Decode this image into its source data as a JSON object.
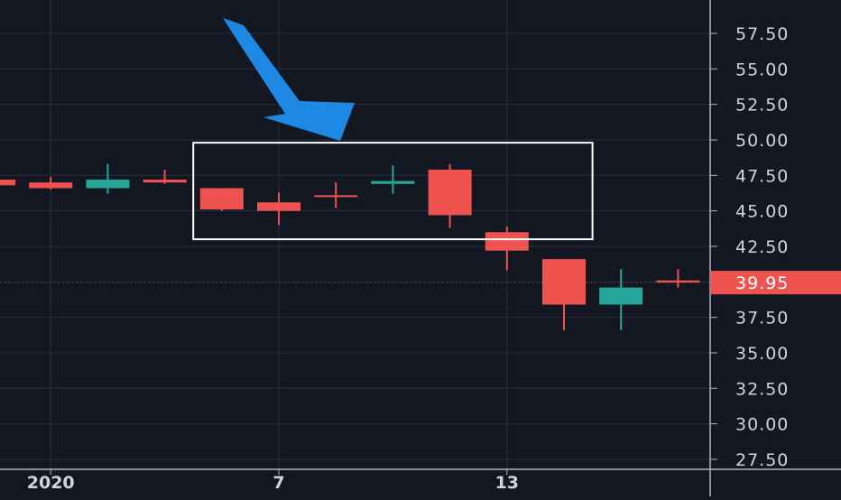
{
  "colors": {
    "background": "#131722",
    "grid": "#2a2e39",
    "axis_line": "#b2b5be",
    "text": "#d1d4dc",
    "up": "#26a69a",
    "down": "#ef5350",
    "arrow": "#1e88e5",
    "box": "#ffffff"
  },
  "chart_data": {
    "type": "candlestick",
    "ylim": [
      26.5,
      60.5
    ],
    "y_ticks": [
      "27.50",
      "30.00",
      "32.50",
      "35.00",
      "37.50",
      "42.50",
      "45.00",
      "47.50",
      "50.00",
      "52.50",
      "55.00",
      "57.50"
    ],
    "x_tick_labels": [
      {
        "label": "2020",
        "index": 1
      },
      {
        "label": "7",
        "index": 5
      },
      {
        "label": "13",
        "index": 9
      }
    ],
    "last_price": "39.95",
    "candles": [
      {
        "open": 47.2,
        "high": 47.2,
        "low": 46.8,
        "close": 46.8
      },
      {
        "open": 47.0,
        "high": 47.4,
        "low": 46.5,
        "close": 46.6
      },
      {
        "open": 46.6,
        "high": 48.3,
        "low": 46.2,
        "close": 47.2
      },
      {
        "open": 47.2,
        "high": 47.9,
        "low": 46.9,
        "close": 47.0
      },
      {
        "open": 46.6,
        "high": 46.6,
        "low": 45.0,
        "close": 45.1
      },
      {
        "open": 45.6,
        "high": 46.3,
        "low": 44.0,
        "close": 45.0
      },
      {
        "open": 46.1,
        "high": 47.0,
        "low": 45.2,
        "close": 46.0
      },
      {
        "open": 46.9,
        "high": 48.2,
        "low": 46.2,
        "close": 47.1
      },
      {
        "open": 47.9,
        "high": 48.3,
        "low": 43.8,
        "close": 44.7
      },
      {
        "open": 43.5,
        "high": 43.9,
        "low": 40.8,
        "close": 42.2
      },
      {
        "open": 41.6,
        "high": 41.6,
        "low": 36.6,
        "close": 38.4
      },
      {
        "open": 38.4,
        "high": 40.9,
        "low": 36.6,
        "close": 39.6
      },
      {
        "open": 40.1,
        "high": 40.9,
        "low": 39.6,
        "close": 39.95
      }
    ],
    "annotations": [
      {
        "type": "rectangle",
        "x_from": 3.5,
        "x_to": 10.5,
        "y_from": 43.0,
        "y_to": 49.8
      },
      {
        "type": "arrow",
        "direction": "pointing down-right toward the rectangle"
      }
    ]
  }
}
